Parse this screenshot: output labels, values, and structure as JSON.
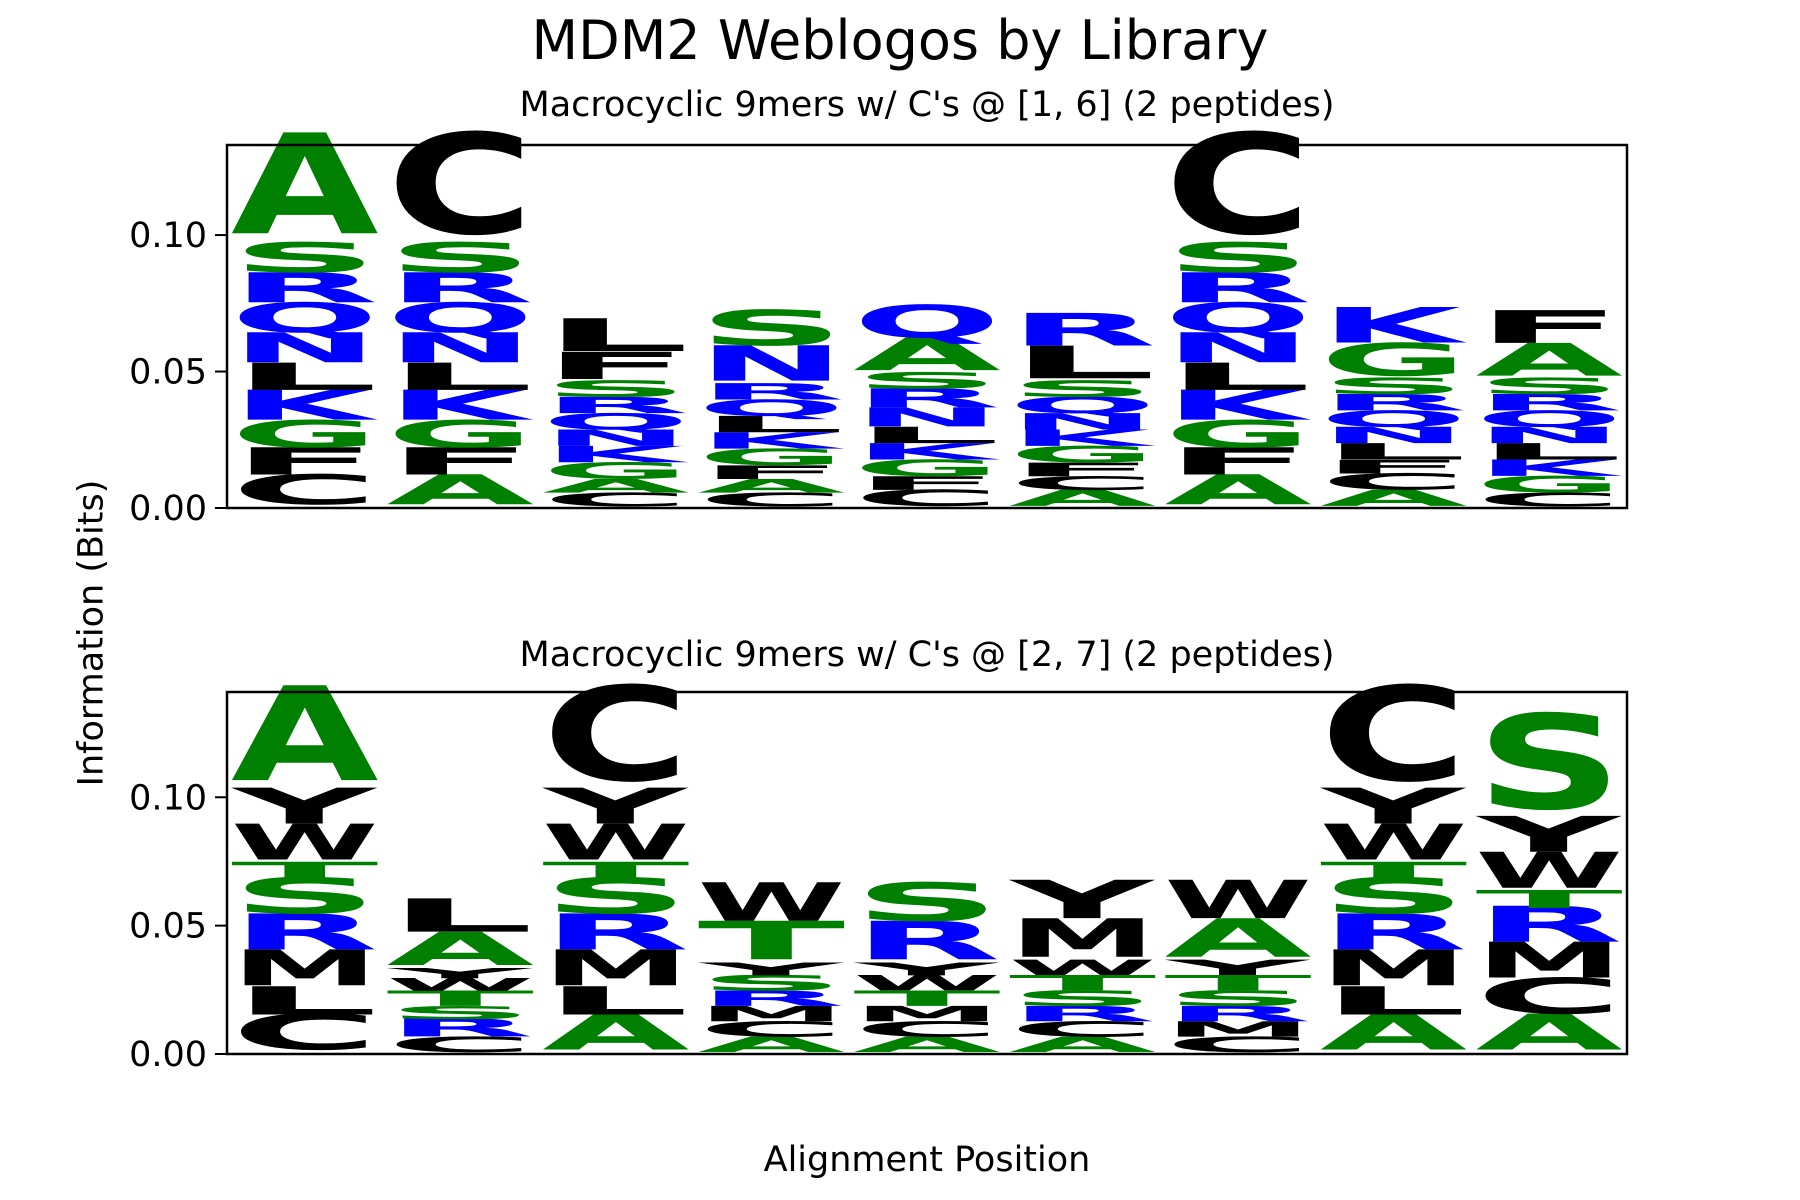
{
  "chart_data": {
    "type": "sequence-logo",
    "title": "MDM2 Weblogos by Library",
    "xlabel": "Alignment Position",
    "ylabel": "Information (Bits)",
    "colors": {
      "green": "#008000",
      "blue": "#0000ff",
      "black": "#000000"
    },
    "residue_colors": {
      "A": "green",
      "G": "green",
      "S": "green",
      "T": "green",
      "R": "blue",
      "K": "blue",
      "N": "blue",
      "Q": "blue",
      "C": "black",
      "L": "black",
      "F": "black",
      "M": "black",
      "W": "black",
      "Y": "black"
    },
    "panels": [
      {
        "title": "Macrocyclic 9mers w/ C's @ [1, 6] (2 peptides)",
        "ylim": [
          0,
          0.133
        ],
        "yticks": [
          "0.00",
          "0.05",
          "0.10"
        ],
        "positions": [
          [
            [
              "C",
              0.011
            ],
            [
              "F",
              0.01
            ],
            [
              "G",
              0.01
            ],
            [
              "K",
              0.011
            ],
            [
              "L",
              0.01
            ],
            [
              "N",
              0.011
            ],
            [
              "Q",
              0.011
            ],
            [
              "R",
              0.011
            ],
            [
              "S",
              0.011
            ],
            [
              "A",
              0.037
            ]
          ],
          [
            [
              "A",
              0.011
            ],
            [
              "F",
              0.01
            ],
            [
              "G",
              0.01
            ],
            [
              "K",
              0.011
            ],
            [
              "L",
              0.01
            ],
            [
              "N",
              0.011
            ],
            [
              "Q",
              0.011
            ],
            [
              "R",
              0.011
            ],
            [
              "S",
              0.011
            ],
            [
              "C",
              0.037
            ]
          ],
          [
            [
              "C",
              0.005
            ],
            [
              "A",
              0.005
            ],
            [
              "G",
              0.006
            ],
            [
              "K",
              0.006
            ],
            [
              "N",
              0.006
            ],
            [
              "Q",
              0.006
            ],
            [
              "R",
              0.006
            ],
            [
              "S",
              0.006
            ],
            [
              "F",
              0.01
            ],
            [
              "L",
              0.012
            ]
          ],
          [
            [
              "C",
              0.005
            ],
            [
              "A",
              0.005
            ],
            [
              "F",
              0.005
            ],
            [
              "G",
              0.006
            ],
            [
              "K",
              0.006
            ],
            [
              "L",
              0.006
            ],
            [
              "Q",
              0.006
            ],
            [
              "R",
              0.006
            ],
            [
              "N",
              0.013
            ],
            [
              "S",
              0.013
            ]
          ],
          [
            [
              "C",
              0.006
            ],
            [
              "F",
              0.005
            ],
            [
              "G",
              0.006
            ],
            [
              "K",
              0.006
            ],
            [
              "L",
              0.006
            ],
            [
              "N",
              0.007
            ],
            [
              "R",
              0.007
            ],
            [
              "S",
              0.006
            ],
            [
              "A",
              0.012
            ],
            [
              "Q",
              0.012
            ]
          ],
          [
            [
              "A",
              0.006
            ],
            [
              "C",
              0.005
            ],
            [
              "F",
              0.005
            ],
            [
              "G",
              0.006
            ],
            [
              "K",
              0.006
            ],
            [
              "N",
              0.006
            ],
            [
              "Q",
              0.006
            ],
            [
              "S",
              0.006
            ],
            [
              "L",
              0.012
            ],
            [
              "R",
              0.012
            ]
          ],
          [
            [
              "A",
              0.011
            ],
            [
              "F",
              0.01
            ],
            [
              "G",
              0.01
            ],
            [
              "K",
              0.011
            ],
            [
              "L",
              0.01
            ],
            [
              "N",
              0.011
            ],
            [
              "Q",
              0.011
            ],
            [
              "R",
              0.011
            ],
            [
              "S",
              0.011
            ],
            [
              "C",
              0.037
            ]
          ],
          [
            [
              "A",
              0.006
            ],
            [
              "C",
              0.006
            ],
            [
              "F",
              0.005
            ],
            [
              "L",
              0.006
            ],
            [
              "N",
              0.006
            ],
            [
              "Q",
              0.006
            ],
            [
              "R",
              0.006
            ],
            [
              "S",
              0.006
            ],
            [
              "G",
              0.012
            ],
            [
              "K",
              0.013
            ]
          ],
          [
            [
              "C",
              0.005
            ],
            [
              "G",
              0.006
            ],
            [
              "K",
              0.006
            ],
            [
              "L",
              0.006
            ],
            [
              "N",
              0.006
            ],
            [
              "Q",
              0.006
            ],
            [
              "R",
              0.006
            ],
            [
              "S",
              0.006
            ],
            [
              "A",
              0.012
            ],
            [
              "F",
              0.012
            ]
          ]
        ]
      },
      {
        "title": "Macrocyclic 9mers w/ C's @ [2, 7] (2 peptides)",
        "ylim": [
          0,
          0.141
        ],
        "yticks": [
          "0.00",
          "0.05",
          "0.10"
        ],
        "positions": [
          [
            [
              "C",
              0.014
            ],
            [
              "L",
              0.011
            ],
            [
              "M",
              0.014
            ],
            [
              "R",
              0.014
            ],
            [
              "S",
              0.014
            ],
            [
              "T",
              0.007
            ],
            [
              "W",
              0.014
            ],
            [
              "Y",
              0.014
            ],
            [
              "A",
              0.037
            ]
          ],
          [
            [
              "C",
              0.006
            ],
            [
              "R",
              0.007
            ],
            [
              "S",
              0.005
            ],
            [
              "T",
              0.006
            ],
            [
              "W",
              0.005
            ],
            [
              "Y",
              0.004
            ],
            [
              "A",
              0.013
            ],
            [
              "L",
              0.013
            ]
          ],
          [
            [
              "A",
              0.014
            ],
            [
              "L",
              0.011
            ],
            [
              "M",
              0.014
            ],
            [
              "R",
              0.014
            ],
            [
              "S",
              0.014
            ],
            [
              "T",
              0.007
            ],
            [
              "W",
              0.014
            ],
            [
              "Y",
              0.014
            ],
            [
              "C",
              0.037
            ]
          ],
          [
            [
              "A",
              0.006
            ],
            [
              "C",
              0.006
            ],
            [
              "M",
              0.006
            ],
            [
              "R",
              0.006
            ],
            [
              "S",
              0.006
            ],
            [
              "Y",
              0.005
            ],
            [
              "T",
              0.015
            ],
            [
              "W",
              0.015
            ]
          ],
          [
            [
              "A",
              0.006
            ],
            [
              "C",
              0.006
            ],
            [
              "M",
              0.006
            ],
            [
              "T",
              0.006
            ],
            [
              "W",
              0.006
            ],
            [
              "Y",
              0.005
            ],
            [
              "R",
              0.015
            ],
            [
              "S",
              0.015
            ]
          ],
          [
            [
              "A",
              0.006
            ],
            [
              "C",
              0.006
            ],
            [
              "R",
              0.006
            ],
            [
              "S",
              0.006
            ],
            [
              "T",
              0.006
            ],
            [
              "W",
              0.006
            ],
            [
              "M",
              0.015
            ],
            [
              "Y",
              0.015
            ]
          ],
          [
            [
              "C",
              0.006
            ],
            [
              "M",
              0.006
            ],
            [
              "R",
              0.006
            ],
            [
              "S",
              0.006
            ],
            [
              "T",
              0.006
            ],
            [
              "Y",
              0.006
            ],
            [
              "A",
              0.015
            ],
            [
              "W",
              0.015
            ]
          ],
          [
            [
              "A",
              0.014
            ],
            [
              "L",
              0.011
            ],
            [
              "M",
              0.014
            ],
            [
              "R",
              0.014
            ],
            [
              "S",
              0.014
            ],
            [
              "T",
              0.007
            ],
            [
              "W",
              0.014
            ],
            [
              "Y",
              0.014
            ],
            [
              "C",
              0.037
            ]
          ],
          [
            [
              "A",
              0.014
            ],
            [
              "C",
              0.014
            ],
            [
              "M",
              0.014
            ],
            [
              "R",
              0.014
            ],
            [
              "T",
              0.007
            ],
            [
              "W",
              0.014
            ],
            [
              "Y",
              0.014
            ],
            [
              "S",
              0.037
            ]
          ]
        ]
      }
    ]
  }
}
